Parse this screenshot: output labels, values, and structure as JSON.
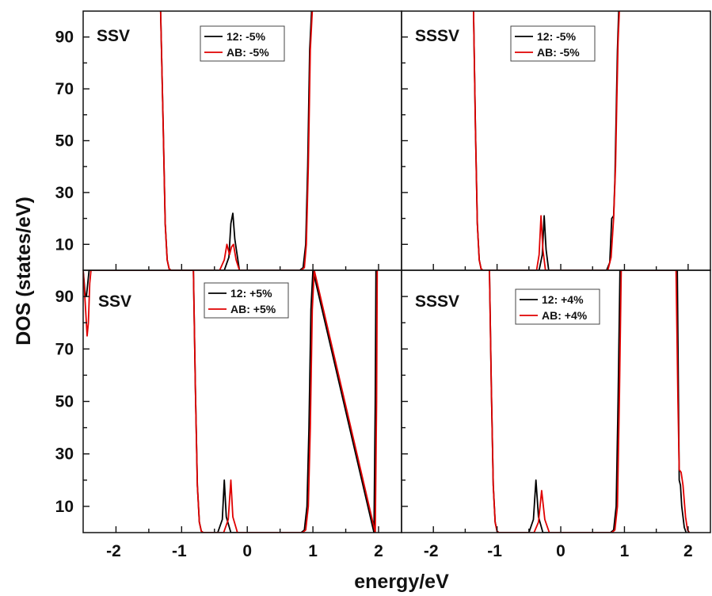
{
  "figure": {
    "ylabel": "DOS (states/eV)",
    "xlabel": "energy/eV"
  },
  "chart_data": [
    {
      "type": "line",
      "panel_label": "SSV",
      "xlim": [
        -2.5,
        2.35
      ],
      "ylim": [
        0,
        100
      ],
      "yticks": [
        10,
        30,
        50,
        70,
        90
      ],
      "xticks": [],
      "legend": "top-center",
      "series": [
        {
          "name": "12: -5%",
          "color": "#000000",
          "x": [
            -1.32,
            -1.28,
            -1.25,
            -1.22,
            -1.19,
            -1.16,
            -0.35,
            -0.28,
            -0.25,
            -0.22,
            -0.19,
            -0.12,
            0.8,
            0.85,
            0.89,
            0.92,
            0.95,
            0.98
          ],
          "y": [
            100,
            55,
            18,
            4,
            0.5,
            0,
            0,
            5,
            18,
            22,
            12,
            0,
            0,
            1,
            10,
            40,
            85,
            100
          ]
        },
        {
          "name": "AB: -5%",
          "color": "#e00000",
          "x": [
            -1.32,
            -1.28,
            -1.25,
            -1.22,
            -1.19,
            -1.16,
            -0.42,
            -0.35,
            -0.31,
            -0.27,
            -0.24,
            -0.21,
            -0.17,
            -0.12,
            0.82,
            0.87,
            0.9,
            0.93,
            0.96,
            0.99
          ],
          "y": [
            100,
            55,
            18,
            4,
            0.5,
            0,
            0,
            4,
            10,
            6,
            9,
            10,
            4,
            0,
            0,
            1,
            10,
            40,
            85,
            100
          ]
        }
      ]
    },
    {
      "type": "line",
      "panel_label": "SSSV",
      "xlim": [
        -2.5,
        2.35
      ],
      "ylim": [
        0,
        100
      ],
      "yticks": [],
      "xticks": [],
      "legend": "top-center",
      "series": [
        {
          "name": "12: -5%",
          "color": "#000000",
          "x": [
            -1.37,
            -1.34,
            -1.31,
            -1.28,
            -1.25,
            -1.22,
            -0.34,
            -0.29,
            -0.26,
            -0.23,
            -0.19,
            0.72,
            0.77,
            0.8,
            0.83,
            0.85,
            0.87,
            0.89,
            0.91
          ],
          "y": [
            100,
            55,
            18,
            4,
            0.5,
            0,
            0,
            6,
            21,
            8,
            0,
            0,
            3,
            20,
            21,
            35,
            60,
            85,
            100
          ]
        },
        {
          "name": "AB: -5%",
          "color": "#e00000",
          "x": [
            -1.37,
            -1.34,
            -1.31,
            -1.28,
            -1.25,
            -1.22,
            -0.38,
            -0.34,
            -0.31,
            -0.28,
            -0.24,
            0.74,
            0.79,
            0.83,
            0.86,
            0.88,
            0.9,
            0.92
          ],
          "y": [
            100,
            55,
            18,
            4,
            0.5,
            0,
            0,
            6,
            21,
            8,
            0,
            0,
            5,
            20,
            40,
            65,
            88,
            100
          ]
        }
      ]
    },
    {
      "type": "line",
      "panel_label": "SSV",
      "xlim": [
        -2.5,
        2.35
      ],
      "ylim": [
        0,
        100
      ],
      "yticks": [
        10,
        30,
        50,
        70,
        90
      ],
      "xticks": [
        -2,
        -1,
        0,
        1,
        2
      ],
      "legend": "top-center",
      "series": [
        {
          "name": "12: +5%",
          "color": "#000000",
          "x": [
            -2.5,
            -2.47,
            -2.45,
            -2.43,
            -2.41,
            -0.82,
            -0.79,
            -0.76,
            -0.73,
            -0.7,
            -0.67,
            -0.45,
            -0.38,
            -0.35,
            -0.32,
            -0.25,
            0.82,
            0.87,
            0.91,
            0.94,
            0.97,
            1.0,
            1.93,
            1.95,
            1.96
          ],
          "y": [
            100,
            91,
            90,
            95,
            100,
            100,
            55,
            18,
            4,
            0.5,
            0,
            0,
            5,
            20,
            6,
            0,
            0,
            1,
            10,
            40,
            85,
            100,
            0,
            50,
            100
          ]
        },
        {
          "name": "AB: +5%",
          "color": "#e00000",
          "x": [
            -2.5,
            -2.47,
            -2.44,
            -2.42,
            -2.4,
            -2.38,
            -0.82,
            -0.79,
            -0.76,
            -0.73,
            -0.7,
            -0.67,
            -0.36,
            -0.29,
            -0.25,
            -0.22,
            -0.15,
            0.84,
            0.89,
            0.93,
            0.96,
            0.99,
            1.02,
            1.95,
            1.97,
            1.98
          ],
          "y": [
            100,
            88,
            75,
            80,
            95,
            100,
            100,
            55,
            18,
            4,
            0.5,
            0,
            0,
            5,
            20,
            6,
            0,
            0,
            1,
            10,
            40,
            85,
            100,
            0,
            50,
            100
          ]
        }
      ]
    },
    {
      "type": "line",
      "panel_label": "SSSV",
      "xlim": [
        -2.5,
        2.35
      ],
      "ylim": [
        0,
        100
      ],
      "yticks": [],
      "xticks": [
        -2,
        -1,
        0,
        1,
        2
      ],
      "legend": "top-center",
      "series": [
        {
          "name": "12: +4%",
          "color": "#000000",
          "x": [
            -1.12,
            -1.09,
            -1.06,
            -1.03,
            -1.0,
            -0.97,
            -0.5,
            -0.43,
            -0.39,
            -0.35,
            -0.28,
            0.78,
            0.83,
            0.87,
            0.9,
            0.93,
            1.83,
            1.86,
            1.88,
            1.9,
            1.94,
            1.97
          ],
          "y": [
            100,
            55,
            18,
            4,
            0.5,
            0,
            0,
            5,
            20,
            6,
            0,
            0,
            1,
            10,
            50,
            100,
            100,
            20,
            18,
            10,
            2,
            0
          ]
        },
        {
          "name": "AB: +4%",
          "color": "#e00000",
          "x": [
            -1.12,
            -1.09,
            -1.06,
            -1.03,
            -1.0,
            -0.97,
            -0.42,
            -0.35,
            -0.3,
            -0.25,
            -0.18,
            0.8,
            0.85,
            0.89,
            0.92,
            0.95,
            1.81,
            1.84,
            1.86,
            1.89,
            1.92,
            1.96,
            1.99,
            2.02
          ],
          "y": [
            100,
            55,
            18,
            4,
            0.5,
            0,
            0,
            4,
            16,
            5,
            0,
            0,
            1,
            10,
            50,
            100,
            100,
            50,
            24,
            23,
            18,
            6,
            1,
            0
          ]
        }
      ]
    }
  ]
}
